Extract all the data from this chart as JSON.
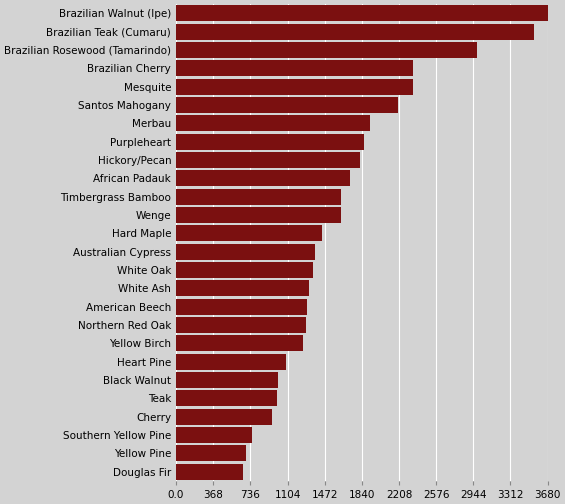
{
  "categories": [
    "Douglas Fir",
    "Yellow Pine",
    "Southern Yellow Pine",
    "Cherry",
    "Teak",
    "Black Walnut",
    "Heart Pine",
    "Yellow Birch",
    "Northern Red Oak",
    "American Beech",
    "White Ash",
    "White Oak",
    "Australian Cypress",
    "Hard Maple",
    "Wenge",
    "Timbergrass Bamboo",
    "African Padauk",
    "Hickory/Pecan",
    "Purpleheart",
    "Merbau",
    "Santos Mahogany",
    "Mesquite",
    "Brazilian Cherry",
    "Brazilian Rosewood (Tamarindo)",
    "Brazilian Teak (Cumaru)",
    "Brazilian Walnut (Ipe)"
  ],
  "values": [
    660,
    690,
    750,
    950,
    1000,
    1010,
    1090,
    1260,
    1290,
    1300,
    1320,
    1360,
    1375,
    1450,
    1630,
    1630,
    1725,
    1820,
    1860,
    1925,
    2200,
    2345,
    2350,
    2980,
    3540,
    3680
  ],
  "bar_color": "#7B1010",
  "bg_color": "#D3D3D3",
  "xticks": [
    0.0,
    368,
    736,
    1104,
    1472,
    1840,
    2208,
    2576,
    2944,
    3312,
    3680
  ],
  "xtick_labels": [
    "0.0",
    "368",
    "736",
    "1104",
    "1472",
    "1840",
    "2208",
    "2576",
    "2944",
    "3312",
    "3680"
  ],
  "grid_color": "#ffffff",
  "bar_height": 0.88,
  "label_fontsize": 7.5,
  "tick_fontsize": 7.5
}
